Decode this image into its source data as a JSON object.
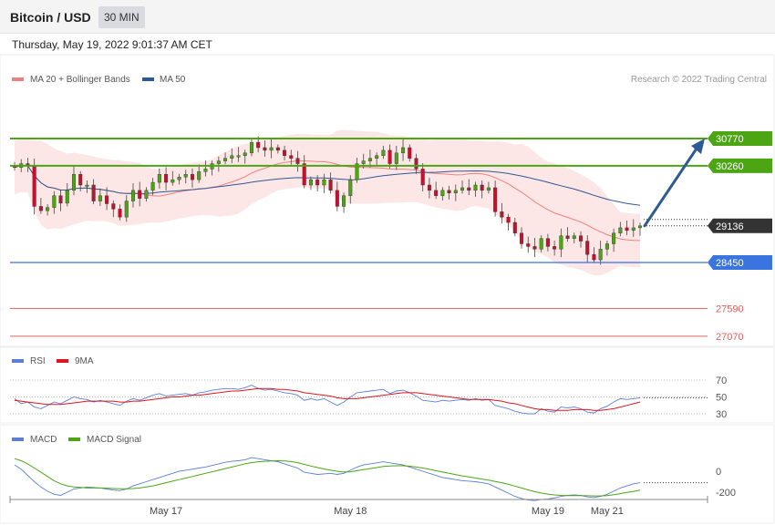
{
  "header": {
    "title": "Bitcoin / USD",
    "interval": "30 MIN"
  },
  "datetime": "Thursday, May 19, 2022 9:01:37 AM CET",
  "legends": {
    "price": [
      {
        "label": "MA 20 + Bollinger Bands",
        "color": "#f08080"
      },
      {
        "label": "MA 50",
        "color": "#2e5a92"
      }
    ],
    "rsi": [
      {
        "label": "RSI",
        "color": "#5b7fd6"
      },
      {
        "label": "9MA",
        "color": "#e0141e"
      }
    ],
    "macd": [
      {
        "label": "MACD",
        "color": "#5b7fd6"
      },
      {
        "label": "MACD Signal",
        "color": "#4ca614"
      }
    ]
  },
  "credit": "Research © 2022 Trading Central",
  "colors": {
    "up": "#4ca614",
    "down": "#c8102e",
    "resistance": "#4ca614",
    "pivot": "#3a74e0",
    "support": "#e06060",
    "last": "#333333",
    "arrow": "#2e5a92"
  },
  "chart_data": {
    "type": "candlestick",
    "ylim": [
      26900,
      31500
    ],
    "levels": [
      {
        "value": 30770,
        "label": "30770",
        "kind": "resistance"
      },
      {
        "value": 30260,
        "label": "30260",
        "kind": "resistance"
      },
      {
        "value": 29136,
        "label": "29136",
        "kind": "last"
      },
      {
        "value": 28450,
        "label": "28450",
        "kind": "pivot"
      },
      {
        "value": 27590,
        "label": "27590",
        "kind": "support"
      },
      {
        "value": 27070,
        "label": "27070",
        "kind": "support"
      }
    ],
    "close": [
      30230,
      30300,
      30260,
      29500,
      29420,
      29480,
      29700,
      29560,
      29800,
      30100,
      29900,
      29900,
      29600,
      29700,
      29550,
      29450,
      29300,
      29600,
      29800,
      29650,
      29800,
      29950,
      30100,
      29950,
      30000,
      30050,
      30100,
      30000,
      30150,
      30200,
      30300,
      30350,
      30400,
      30450,
      30450,
      30500,
      30700,
      30600,
      30550,
      30600,
      30550,
      30450,
      30400,
      30300,
      29900,
      30000,
      29900,
      30000,
      29800,
      29500,
      29700,
      30000,
      30300,
      30350,
      30400,
      30450,
      30550,
      30300,
      30500,
      30600,
      30400,
      30200,
      29900,
      29800,
      29700,
      29800,
      29750,
      29800,
      29850,
      29800,
      29900,
      29800,
      29850,
      29400,
      29300,
      29200,
      29000,
      28800,
      28750,
      28700,
      28900,
      28750,
      28700,
      28950,
      28900,
      28950,
      28850,
      28600,
      28500,
      28700,
      28800,
      29000,
      29100,
      29050,
      29100,
      29136
    ],
    "x_ticks": [
      {
        "label": "May 17",
        "index": 23
      },
      {
        "label": "May 18",
        "index": 51
      },
      {
        "label": "May 19",
        "index": 81
      },
      {
        "label": "May 21",
        "index": 90
      }
    ],
    "rsi": {
      "levels": [
        "70",
        "50",
        "30"
      ],
      "ylim": [
        25,
        80
      ],
      "values": [
        48,
        42,
        44,
        38,
        36,
        40,
        44,
        42,
        46,
        50,
        48,
        47,
        44,
        46,
        44,
        42,
        40,
        45,
        48,
        46,
        49,
        52,
        54,
        51,
        52,
        53,
        54,
        52,
        55,
        56,
        58,
        59,
        60,
        60,
        59,
        61,
        64,
        60,
        58,
        59,
        57,
        55,
        54,
        52,
        46,
        48,
        46,
        48,
        44,
        40,
        44,
        50,
        55,
        56,
        57,
        58,
        59,
        54,
        57,
        58,
        55,
        51,
        46,
        45,
        44,
        46,
        45,
        46,
        47,
        46,
        48,
        46,
        47,
        40,
        38,
        36,
        33,
        31,
        30,
        30,
        36,
        33,
        32,
        38,
        37,
        38,
        36,
        32,
        31,
        36,
        39,
        44,
        48,
        47,
        48,
        49
      ],
      "ma": [
        46,
        45,
        44,
        43,
        42,
        41,
        41,
        41,
        42,
        43,
        44,
        45,
        45,
        45,
        45,
        45,
        44,
        44,
        45,
        45,
        46,
        47,
        48,
        49,
        50,
        50,
        51,
        52,
        52,
        53,
        54,
        55,
        56,
        57,
        57,
        58,
        59,
        60,
        60,
        60,
        59,
        59,
        58,
        57,
        55,
        54,
        53,
        52,
        51,
        49,
        48,
        48,
        48,
        49,
        50,
        51,
        52,
        53,
        54,
        55,
        55,
        55,
        54,
        53,
        52,
        51,
        50,
        49,
        48,
        47,
        47,
        47,
        47,
        46,
        45,
        43,
        42,
        40,
        38,
        36,
        35,
        35,
        34,
        34,
        34,
        35,
        35,
        35,
        34,
        34,
        35,
        36,
        38,
        40,
        42,
        44
      ]
    },
    "macd": {
      "levels": [
        "0",
        "-200"
      ],
      "ylim": [
        -300,
        250
      ],
      "macd": [
        60,
        20,
        -40,
        -100,
        -150,
        -190,
        -220,
        -230,
        -200,
        -170,
        -160,
        -150,
        -155,
        -160,
        -170,
        -180,
        -185,
        -170,
        -140,
        -120,
        -100,
        -80,
        -60,
        -40,
        -20,
        0,
        10,
        20,
        30,
        40,
        55,
        70,
        85,
        95,
        100,
        110,
        130,
        120,
        110,
        100,
        90,
        70,
        50,
        30,
        -10,
        -20,
        -30,
        -25,
        -20,
        -30,
        -20,
        10,
        40,
        60,
        70,
        80,
        90,
        80,
        70,
        60,
        40,
        20,
        0,
        -20,
        -40,
        -60,
        -70,
        -80,
        -90,
        -95,
        -100,
        -110,
        -120,
        -150,
        -180,
        -210,
        -240,
        -260,
        -275,
        -280,
        -270,
        -265,
        -255,
        -240,
        -230,
        -225,
        -230,
        -245,
        -250,
        -240,
        -220,
        -190,
        -160,
        -140,
        -120,
        -110
      ],
      "signal": [
        120,
        100,
        70,
        30,
        -10,
        -50,
        -90,
        -120,
        -140,
        -150,
        -155,
        -160,
        -160,
        -160,
        -162,
        -165,
        -168,
        -168,
        -165,
        -160,
        -150,
        -140,
        -125,
        -110,
        -95,
        -80,
        -65,
        -50,
        -35,
        -20,
        -5,
        10,
        25,
        40,
        55,
        70,
        82,
        90,
        95,
        98,
        100,
        98,
        92,
        82,
        65,
        50,
        35,
        22,
        10,
        0,
        -8,
        -5,
        5,
        15,
        25,
        35,
        45,
        50,
        52,
        52,
        48,
        40,
        30,
        18,
        5,
        -8,
        -20,
        -32,
        -44,
        -55,
        -65,
        -75,
        -85,
        -97,
        -110,
        -125,
        -142,
        -160,
        -178,
        -195,
        -208,
        -218,
        -226,
        -230,
        -232,
        -232,
        -232,
        -234,
        -236,
        -236,
        -232,
        -224,
        -214,
        -203,
        -192,
        -180
      ]
    }
  }
}
